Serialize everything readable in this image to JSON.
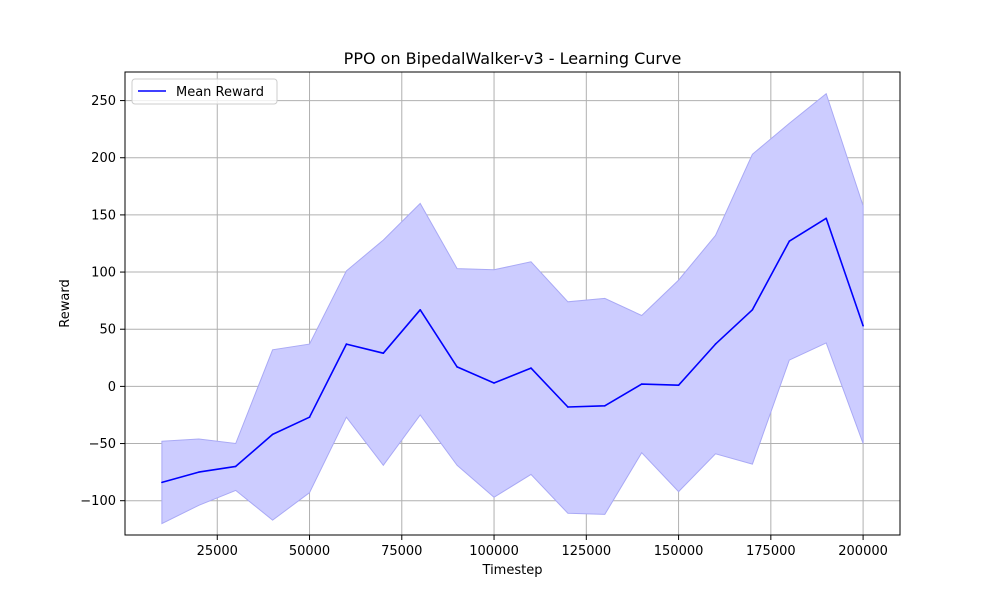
{
  "chart_data": {
    "type": "line",
    "title": "PPO on BipedalWalker-v3 - Learning Curve",
    "xlabel": "Timestep",
    "ylabel": "Reward",
    "xlim": [
      0,
      210000
    ],
    "ylim": [
      -130,
      275
    ],
    "xticks": [
      25000,
      50000,
      75000,
      100000,
      125000,
      150000,
      175000,
      200000
    ],
    "yticks": [
      -100,
      -50,
      0,
      50,
      100,
      150,
      200,
      250
    ],
    "grid": true,
    "legend_position": "top-left",
    "x": [
      10000,
      20000,
      30000,
      40000,
      50000,
      60000,
      70000,
      80000,
      90000,
      100000,
      110000,
      120000,
      130000,
      140000,
      150000,
      160000,
      170000,
      180000,
      190000,
      200000
    ],
    "series": [
      {
        "name": "Mean Reward",
        "color": "#0000ff",
        "values": [
          -84,
          -75,
          -70,
          -42,
          -27,
          37,
          29,
          67,
          17,
          3,
          16,
          -18,
          -17,
          2,
          1,
          37,
          67,
          127,
          147,
          53
        ],
        "band_upper": [
          -48,
          -46,
          -50,
          32,
          37,
          101,
          128,
          160,
          103,
          102,
          109,
          74,
          77,
          62,
          93,
          132,
          203,
          230,
          256,
          158
        ],
        "band_lower": [
          -120,
          -104,
          -91,
          -117,
          -93,
          -27,
          -69,
          -25,
          -69,
          -97,
          -77,
          -111,
          -112,
          -58,
          -92,
          -59,
          -68,
          23,
          38,
          -50
        ],
        "band_color": "#ccccff"
      }
    ]
  }
}
